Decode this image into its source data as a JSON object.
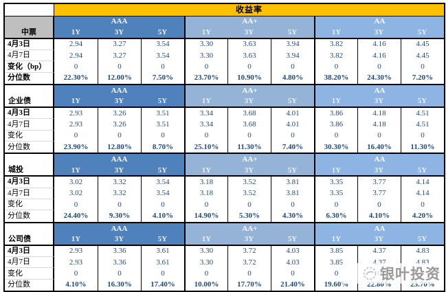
{
  "title": "收益率",
  "watermark": {
    "text": "银叶投资",
    "icon": "swirl-circle-logo-icon"
  },
  "colors": {
    "title_bg": "#FFC000",
    "aaa_header_bg": "#4F81BD",
    "aaplus_header_bg": "#95B3D7",
    "aa_header_bg": "#8DB4E2",
    "section_label_gray_bg": "#BFBFBF",
    "value_text": "#1F497D",
    "border": "#000000"
  },
  "chart_data": {
    "type": "table",
    "title": "收益率",
    "column_groups": [
      "AAA",
      "AA+",
      "AA"
    ],
    "maturities": [
      "1Y",
      "3Y",
      "5Y"
    ],
    "sections": [
      {
        "name": "中票",
        "label_bg": "gray",
        "rows": [
          {
            "label": "4月3日",
            "bold": true,
            "emphasize_values": false,
            "values": [
              "2.94",
              "3.27",
              "3.54",
              "3.30",
              "3.63",
              "3.94",
              "3.82",
              "4.16",
              "4.45"
            ]
          },
          {
            "label": "4月7日",
            "bold": false,
            "emphasize_values": false,
            "values": [
              "2.94",
              "3.27",
              "3.54",
              "3.30",
              "3.63",
              "3.94",
              "3.82",
              "4.16",
              "4.45"
            ]
          },
          {
            "label": "变化（bp）",
            "bold": true,
            "emphasize_values": false,
            "values": [
              "0",
              "0",
              "0",
              "0",
              "0",
              "0",
              "0",
              "0",
              "0"
            ]
          },
          {
            "label": "分位数",
            "bold": true,
            "emphasize_values": true,
            "values": [
              "22.30%",
              "12.00%",
              "7.50%",
              "23.70%",
              "10.90%",
              "4.80%",
              "38.20%",
              "24.30%",
              "7.20%"
            ]
          }
        ]
      },
      {
        "name": "企业债",
        "label_bg": "white",
        "rows": [
          {
            "label": "4月3日",
            "bold": true,
            "emphasize_values": false,
            "values": [
              "2.93",
              "3.26",
              "3.51",
              "3.34",
              "3.68",
              "4.01",
              "3.86",
              "4.18",
              "4.51"
            ]
          },
          {
            "label": "4月7日",
            "bold": false,
            "emphasize_values": false,
            "values": [
              "2.93",
              "3.26",
              "3.51",
              "3.34",
              "3.68",
              "4.01",
              "3.86",
              "4.18",
              "4.51"
            ]
          },
          {
            "label": "变化",
            "bold": false,
            "emphasize_values": false,
            "values": [
              "0",
              "0",
              "0",
              "0",
              "0",
              "0",
              "0",
              "0",
              "0"
            ]
          },
          {
            "label": "分位数",
            "bold": false,
            "emphasize_values": true,
            "values": [
              "23.90%",
              "12.80%",
              "8.70%",
              "25.10%",
              "11.30%",
              "7.40%",
              "30.30%",
              "16.40%",
              "11.30%"
            ]
          }
        ]
      },
      {
        "name": "城投",
        "label_bg": "white",
        "rows": [
          {
            "label": "4月3日",
            "bold": true,
            "emphasize_values": false,
            "values": [
              "3.02",
              "3.32",
              "3.54",
              "3.18",
              "3.52",
              "3.81",
              "3.35",
              "3.77",
              "4.14"
            ]
          },
          {
            "label": "4月7日",
            "bold": false,
            "emphasize_values": false,
            "values": [
              "3.02",
              "3.32",
              "3.54",
              "3.18",
              "3.52",
              "3.81",
              "3.35",
              "3.77",
              "4.14"
            ]
          },
          {
            "label": "变化",
            "bold": false,
            "emphasize_values": false,
            "values": [
              "0",
              "0",
              "0",
              "0",
              "0",
              "0",
              "0",
              "0",
              "0"
            ]
          },
          {
            "label": "分位数",
            "bold": false,
            "emphasize_values": true,
            "values": [
              "24.40%",
              "9.30%",
              "4.10%",
              "14.90%",
              "5.30%",
              "4.30%",
              "6.30%",
              "4.10%",
              "4.20%"
            ]
          }
        ]
      },
      {
        "name": "公司债",
        "label_bg": "white",
        "rows": [
          {
            "label": "4月3日",
            "bold": true,
            "emphasize_values": false,
            "values": [
              "2.93",
              "3.36",
              "3.61",
              "3.30",
              "3.72",
              "4.03",
              "3.85",
              "4.37",
              "4.83"
            ]
          },
          {
            "label": "4月7日",
            "bold": false,
            "emphasize_values": false,
            "values": [
              "2.93",
              "3.36",
              "3.61",
              "3.30",
              "3.72",
              "4.03",
              "3.85",
              "4.37",
              "4.83"
            ]
          },
          {
            "label": "变化",
            "bold": false,
            "emphasize_values": false,
            "values": [
              "0",
              "0",
              "0",
              "0",
              "0",
              "0",
              "0",
              "0",
              "0"
            ]
          },
          {
            "label": "分位数",
            "bold": false,
            "emphasize_values": true,
            "values": [
              "4.10%",
              "16.30%",
              "17.40%",
              "10.00%",
              "17.70%",
              "21.40%",
              "19.60%",
              "22.80%",
              "23.70%"
            ]
          }
        ]
      }
    ]
  }
}
